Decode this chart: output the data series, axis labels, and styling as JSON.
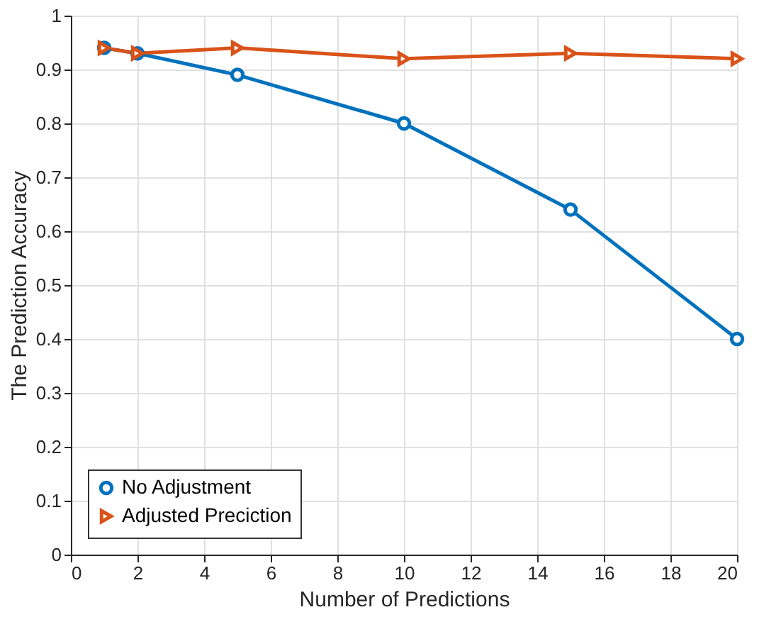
{
  "chart_data": {
    "type": "line",
    "xlabel": "Number of Predictions",
    "ylabel": "The Prediction Accuracy",
    "x": [
      1,
      2,
      5,
      10,
      15,
      20
    ],
    "series": [
      {
        "name": "No Adjustment",
        "color": "#0072bd",
        "marker": "circle",
        "values": [
          0.94,
          0.93,
          0.89,
          0.8,
          0.64,
          0.4
        ]
      },
      {
        "name": "Adjusted Preciction",
        "color": "#d95319",
        "marker": "triangle",
        "values": [
          0.94,
          0.93,
          0.94,
          0.92,
          0.93,
          0.92
        ]
      }
    ],
    "xlim": [
      0,
      20
    ],
    "xticks": [
      0,
      2,
      4,
      6,
      8,
      10,
      12,
      14,
      16,
      18,
      20
    ],
    "ylim": [
      0,
      1
    ],
    "yticks": [
      0,
      0.1,
      0.2,
      0.3,
      0.4,
      0.5,
      0.6,
      0.7,
      0.8,
      0.9,
      1
    ],
    "grid": true,
    "legend": "bottom left",
    "line_style": "solid"
  }
}
